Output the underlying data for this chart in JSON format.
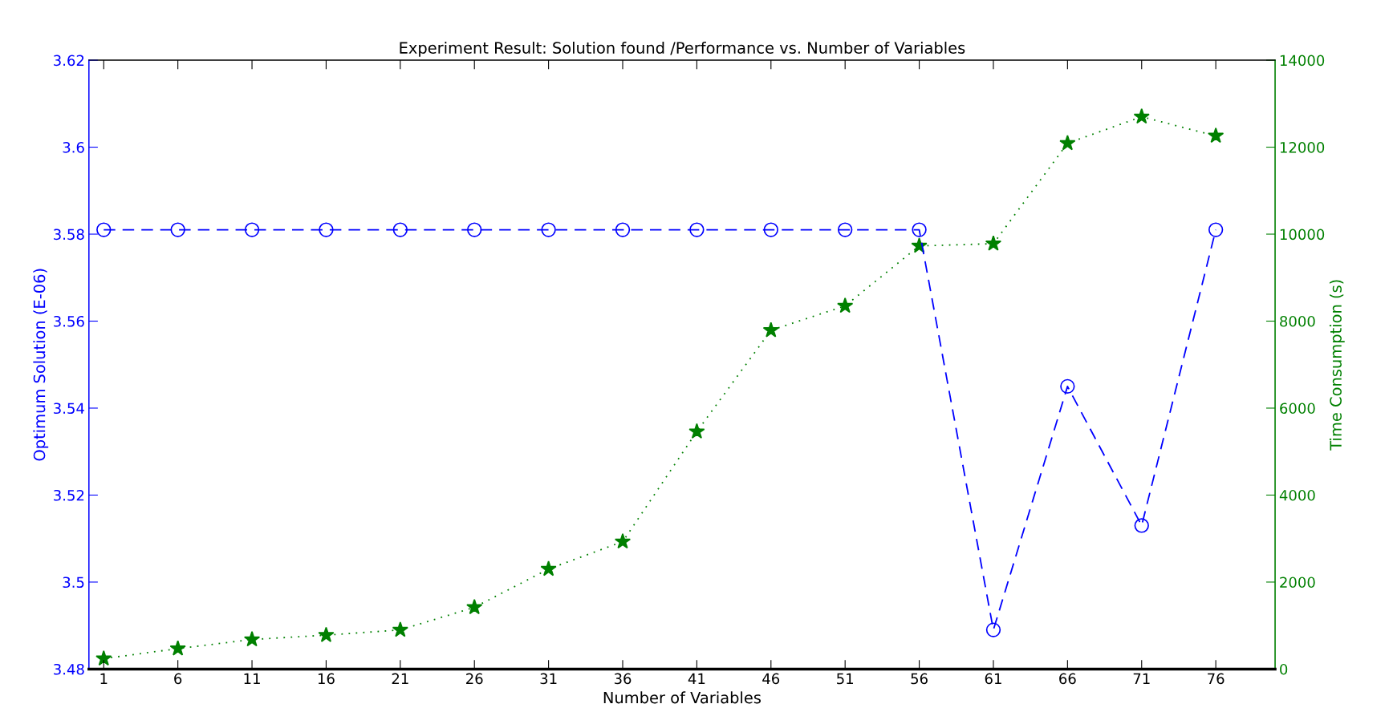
{
  "chart_data": {
    "type": "line",
    "title": "Experiment Result: Solution found /Performance vs. Number of Variables",
    "xlabel": "Number of Variables",
    "ylabel": "Optimum Solution (E-06)",
    "y2label": "Time Consumption (s)",
    "x": [
      1,
      6,
      11,
      16,
      21,
      26,
      31,
      36,
      41,
      46,
      51,
      56,
      61,
      66,
      71,
      76
    ],
    "xlim": [
      0,
      80
    ],
    "xticks": [
      1,
      6,
      11,
      16,
      21,
      26,
      31,
      36,
      41,
      46,
      51,
      56,
      61,
      66,
      71,
      76
    ],
    "ylim": [
      3.48,
      3.62
    ],
    "yticks": [
      3.48,
      3.5,
      3.52,
      3.54,
      3.56,
      3.58,
      3.6,
      3.62
    ],
    "y2lim": [
      0,
      14000
    ],
    "y2ticks": [
      0,
      2000,
      4000,
      6000,
      8000,
      10000,
      12000,
      14000
    ],
    "grid": false,
    "legend": false,
    "series": [
      {
        "color": "#0000ff",
        "marker": "circle",
        "line_style": "dashed",
        "values": [
          3.581,
          3.581,
          3.581,
          3.581,
          3.581,
          3.581,
          3.581,
          3.581,
          3.581,
          3.581,
          3.581,
          3.581,
          3.489,
          3.545,
          3.513,
          3.581
        ]
      },
      {
        "color": "#008000",
        "marker": "star",
        "line_style": "dotted",
        "axis": "y2",
        "values": [
          240,
          470,
          680,
          780,
          900,
          1420,
          2300,
          2930,
          5460,
          7790,
          8350,
          9730,
          9780,
          12090,
          12700,
          12260
        ]
      }
    ]
  }
}
